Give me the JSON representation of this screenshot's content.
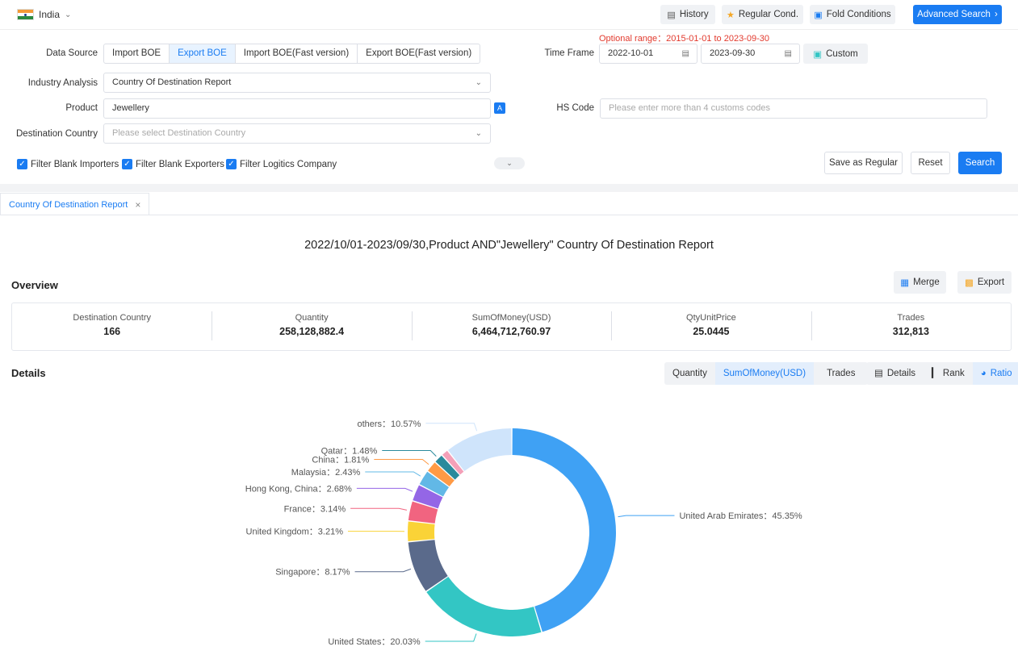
{
  "topbar": {
    "country": "India",
    "history_label": "History",
    "regular_label": "Regular Cond.",
    "fold_label": "Fold Conditions",
    "advanced_label": "Advanced Search"
  },
  "range_hint": "Optional range：2015-01-01 to 2023-09-30",
  "form": {
    "data_source_label": "Data Source",
    "data_sources": [
      "Import BOE",
      "Export BOE",
      "Import BOE(Fast version)",
      "Export BOE(Fast version)"
    ],
    "time_frame_label": "Time Frame",
    "date_from": "2022-10-01",
    "date_to": "2023-09-30",
    "custom_label": "Custom",
    "industry_label": "Industry Analysis",
    "industry_value": "Country Of Destination Report",
    "product_label": "Product",
    "product_value": "Jewellery",
    "hs_label": "HS Code",
    "hs_placeholder": "Please enter more than 4 customs codes",
    "dest_label": "Destination Country",
    "dest_placeholder": "Please select Destination Country",
    "filter_importers": "Filter Blank Importers",
    "filter_exporters": "Filter Blank Exporters",
    "filter_logistics": "Filter Logitics Company",
    "save_regular": "Save as Regular",
    "reset": "Reset",
    "search": "Search"
  },
  "tab": {
    "label": "Country Of Destination Report"
  },
  "report_title": "2022/10/01-2023/09/30,Product AND\"Jewellery\" Country Of Destination Report",
  "overview": {
    "title": "Overview",
    "merge": "Merge",
    "export": "Export",
    "stats": [
      {
        "label": "Destination Country",
        "value": "166"
      },
      {
        "label": "Quantity",
        "value": "258,128,882.4"
      },
      {
        "label": "SumOfMoney(USD)",
        "value": "6,464,712,760.97"
      },
      {
        "label": "QtyUnitPrice",
        "value": "25.0445"
      },
      {
        "label": "Trades",
        "value": "312,813"
      }
    ]
  },
  "details": {
    "title": "Details",
    "metrics": [
      "Quantity",
      "SumOfMoney(USD)",
      "Trades"
    ],
    "views": [
      "Details",
      "Rank",
      "Ratio"
    ]
  },
  "colors": {
    "accent": "#1a7cf2",
    "slices": [
      "#3fa1f4",
      "#33c6c4",
      "#5a6a8b",
      "#fad337",
      "#f16480",
      "#9466e6",
      "#62b8e6",
      "#ff9a45",
      "#2a8a9c",
      "#f4a0b8",
      "#cfe4fb"
    ]
  },
  "chart_data": {
    "type": "pie",
    "variant": "donut",
    "categories": [
      "United Arab Emirates",
      "United States",
      "Singapore",
      "United Kingdom",
      "France",
      "Hong Kong, China",
      "Malaysia",
      "China",
      "Qatar",
      "",
      "others"
    ],
    "values": [
      45.35,
      20.03,
      8.17,
      3.21,
      3.14,
      2.68,
      2.43,
      1.81,
      1.48,
      1.13,
      10.57
    ],
    "labels": [
      "United Arab Emirates：45.35%",
      "United States：20.03%",
      "Singapore：8.17%",
      "United Kingdom：3.21%",
      "France：3.14%",
      "Hong Kong, China：2.68%",
      "Malaysia：2.43%",
      "China：1.81%",
      "Qatar：1.48%",
      "",
      "others：10.57%"
    ]
  }
}
